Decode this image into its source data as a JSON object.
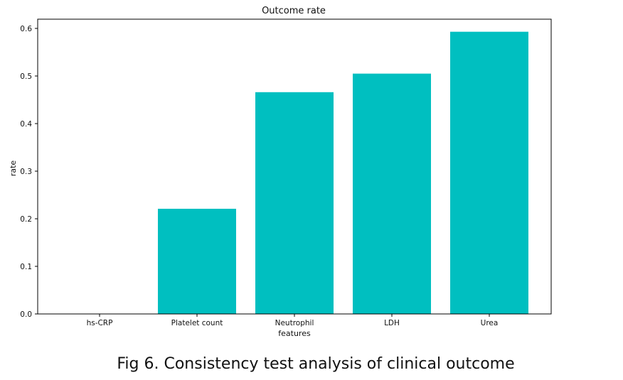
{
  "chart_data": {
    "type": "bar",
    "title": "Outcome rate",
    "xlabel": "features",
    "ylabel": "rate",
    "categories": [
      "hs-CRP",
      "Platelet count",
      "Neutrophil",
      "LDH",
      "Urea"
    ],
    "values": [
      0.0,
      0.221,
      0.466,
      0.505,
      0.593
    ],
    "ylim": [
      0.0,
      0.6
    ],
    "yticks": [
      "0.0",
      "0.1",
      "0.2",
      "0.3",
      "0.4",
      "0.5",
      "0.6"
    ],
    "bar_color": "#00bfc0",
    "grid": false,
    "legend": "none"
  },
  "caption": "Fig 6. Consistency test analysis of clinical outcome"
}
